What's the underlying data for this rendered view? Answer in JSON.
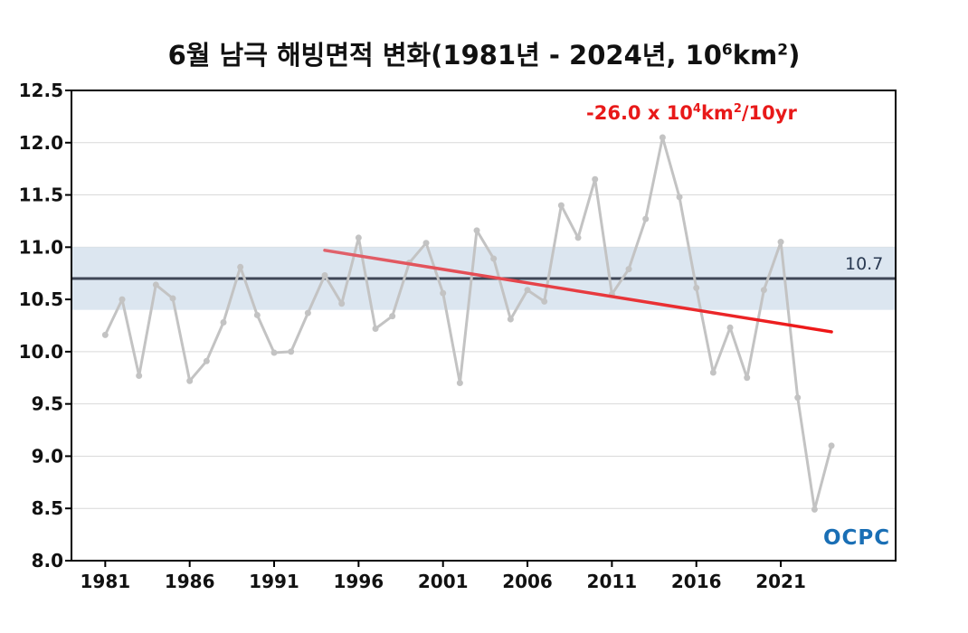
{
  "title": {
    "main": "6월 남극 해빙면적 변화(1981년 - 2024년, 10",
    "sup1": "6",
    "mid": "km",
    "sup2": "2",
    "end": ")"
  },
  "trend_label": {
    "prefix": "-26.0 x 10",
    "sup1": "4",
    "mid": "km",
    "sup2": "2",
    "suffix": "/10yr"
  },
  "mean_label": "10.7",
  "logo_text": "OCPC",
  "colors": {
    "series": "#c3c3c3",
    "mean_line": "#3f4756",
    "band": "#dce6f0",
    "trend_start": "#e0636d",
    "trend_end": "#ee1515",
    "grid": "#d9d9d9"
  },
  "chart_data": {
    "type": "line",
    "x": [
      1981,
      1982,
      1983,
      1984,
      1985,
      1986,
      1987,
      1988,
      1989,
      1990,
      1991,
      1992,
      1993,
      1994,
      1995,
      1996,
      1997,
      1998,
      1999,
      2000,
      2001,
      2002,
      2003,
      2004,
      2005,
      2006,
      2007,
      2008,
      2009,
      2010,
      2011,
      2012,
      2013,
      2014,
      2015,
      2016,
      2017,
      2018,
      2019,
      2020,
      2021,
      2022,
      2023,
      2024
    ],
    "series": [
      {
        "values": [
          10.16,
          10.5,
          9.77,
          10.64,
          10.51,
          9.72,
          9.91,
          10.28,
          10.81,
          10.35,
          9.99,
          10.0,
          10.37,
          10.73,
          10.46,
          11.09,
          10.22,
          10.34,
          10.85,
          11.04,
          10.56,
          9.7,
          11.16,
          10.89,
          10.31,
          10.59,
          10.48,
          11.4,
          11.09,
          11.65,
          10.55,
          10.79,
          11.27,
          12.05,
          11.48,
          10.61,
          9.8,
          10.23,
          9.75,
          10.59,
          11.05,
          9.56,
          8.49,
          9.1
        ]
      }
    ],
    "mean": 10.7,
    "mean_band": [
      10.4,
      11.0
    ],
    "trend": {
      "x": [
        1994,
        2024
      ],
      "y": [
        10.97,
        10.19
      ]
    },
    "ylim": [
      8.0,
      12.5
    ],
    "yticks": [
      "8.0",
      "8.5",
      "9.0",
      "9.5",
      "10.0",
      "10.5",
      "11.0",
      "11.5",
      "12.0",
      "12.5"
    ],
    "xticks": [
      "1981",
      "1986",
      "1991",
      "1996",
      "2001",
      "2006",
      "2011",
      "2016",
      "2021"
    ],
    "xlim": [
      1979,
      2027.8
    ],
    "grid": "horizontal"
  }
}
